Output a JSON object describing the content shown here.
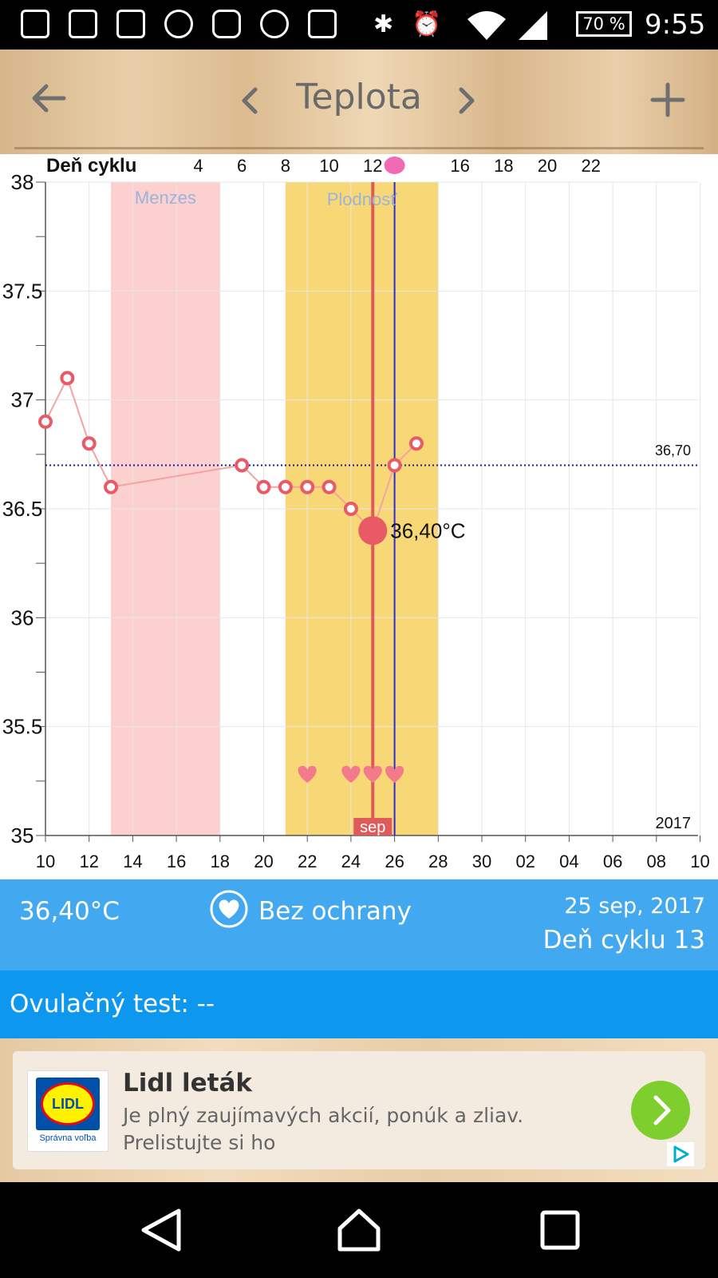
{
  "status_bar": {
    "battery": "70 %",
    "time": "9:55"
  },
  "header": {
    "title": "Teplota",
    "back_icon": "arrow-left-icon",
    "prev_icon": "chevron-left-icon",
    "next_icon": "chevron-right-icon",
    "add_icon": "plus-icon"
  },
  "chart": {
    "cycle_label": "Deň cyklu",
    "cycle_ticks": [
      "4",
      "6",
      "8",
      "10",
      "12",
      "16",
      "18",
      "20",
      "22"
    ],
    "menses_label": "Menzes",
    "fertility_label": "Plodnosť",
    "coverline_label": "36,70",
    "selected_label": "36,40°C",
    "month_label": "sep",
    "year_label": "2017",
    "y_tick_labels": [
      "38",
      "37.5",
      "37",
      "36.5",
      "36",
      "35.5",
      "35"
    ],
    "x_tick_labels": [
      "10",
      "12",
      "14",
      "16",
      "18",
      "20",
      "22",
      "24",
      "26",
      "28",
      "30",
      "02",
      "04",
      "06",
      "08",
      "10"
    ]
  },
  "chart_data": {
    "type": "line",
    "x_unit": "day",
    "x": [
      10,
      11,
      12,
      13,
      19,
      20,
      21,
      22,
      23,
      24,
      25,
      26,
      27
    ],
    "series": [
      {
        "values": [
          36.9,
          37.1,
          36.8,
          36.6,
          36.7,
          36.6,
          36.6,
          36.6,
          36.6,
          36.5,
          36.4,
          36.7,
          36.8
        ]
      }
    ],
    "ylim": [
      35,
      38
    ],
    "xlim": [
      10,
      40
    ],
    "coverline": 36.7,
    "selected_day": 25,
    "selected_value": 36.4,
    "ovulation_day": 26,
    "menses_range": [
      13,
      18
    ],
    "fertility_range": [
      21,
      28
    ],
    "intercourse_days": [
      22,
      24,
      25,
      26
    ],
    "colors": {
      "line": "#f4a3a3",
      "marker": "#e85a66",
      "menses": "#fdd0d0",
      "fertility": "#f8d876",
      "selected_line": "#df5a5a",
      "ovulation_line": "#2b2bcc",
      "coverline": "#1a1a9a"
    }
  },
  "info": {
    "temperature": "36,40°C",
    "protection": "Bez ochrany",
    "date": "25 sep, 2017",
    "cycle_day": "Deň cyklu 13",
    "ovulation_test": "Ovulačný test: --"
  },
  "ad": {
    "logo_text": "LIDL",
    "logo_caption": "Správna voľba",
    "title": "Lidl leták",
    "desc_line1": "Je plný zaujímavých akcií, ponúk a zliav.",
    "desc_line2": "Prelistujte si ho"
  }
}
